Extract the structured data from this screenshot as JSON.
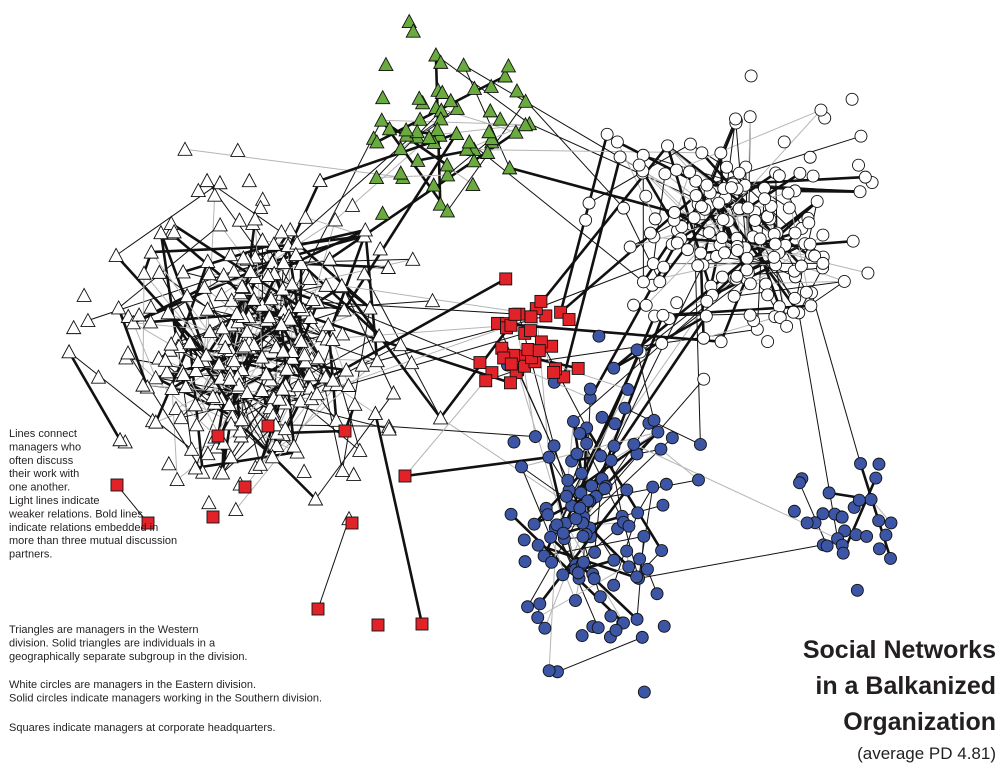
{
  "legend": {
    "paragraphs": [
      [
        "Lines connect",
        "managers who",
        "often discuss",
        "their work with",
        "one another.",
        "Light lines indicate",
        "weaker relations.  Bold lines",
        "indicate relations embedded in",
        "more than three mutual discussion",
        "partners."
      ],
      [
        "Triangles are managers in the Western",
        "division.  Solid triangles are individuals in a",
        "geographically separate subgroup in the division."
      ],
      [
        "White circles are managers in the Eastern division.",
        "Solid circles indicate managers working in the Southern division."
      ],
      [
        "Squares indicate managers at corporate headquarters."
      ]
    ]
  },
  "title": {
    "lines": [
      "Social Networks",
      "in a Balkanized",
      "Organization"
    ],
    "subtitle": "(average PD 4.81)"
  }
}
